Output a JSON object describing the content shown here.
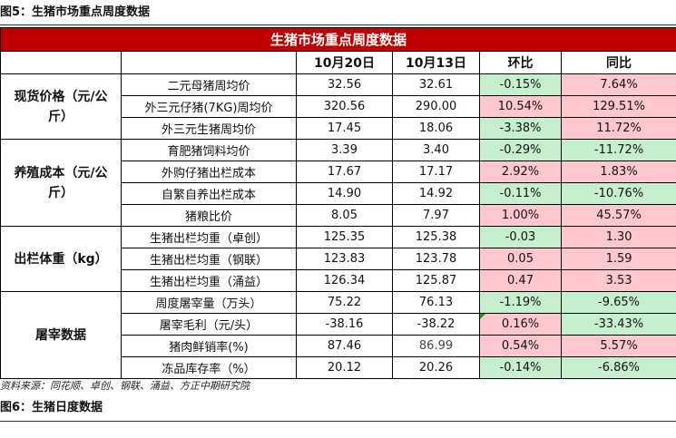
{
  "figure5": {
    "caption": "图5：生猪市场重点周度数据"
  },
  "table": {
    "title": "生猪市场重点周度数据",
    "headers": [
      "10月20日",
      "10月13日",
      "环比",
      "同比"
    ],
    "groups": [
      {
        "category": "现货价格（元/公斤）",
        "rows": [
          {
            "label": "二元母猪周均价",
            "cur": "32.56",
            "prev": "32.61",
            "wow": "-0.15%",
            "yoy": "7.64%"
          },
          {
            "label": "外三元仔猪(7KG)周均价",
            "cur": "320.56",
            "prev": "290.00",
            "wow": "10.54%",
            "yoy": "129.51%"
          },
          {
            "label": "外三元生猪周均价",
            "cur": "17.45",
            "prev": "18.06",
            "wow": "-3.38%",
            "yoy": "11.72%"
          }
        ]
      },
      {
        "category": "养殖成本（元/公斤）",
        "rows": [
          {
            "label": "育肥猪饲料均价",
            "cur": "3.39",
            "prev": "3.40",
            "wow": "-0.29%",
            "yoy": "-11.72%"
          },
          {
            "label": "外购仔猪出栏成本",
            "cur": "17.67",
            "prev": "17.17",
            "wow": "2.92%",
            "yoy": "1.83%"
          },
          {
            "label": "自繁自养出栏成本",
            "cur": "14.90",
            "prev": "14.92",
            "wow": "-0.11%",
            "yoy": "-10.76%"
          },
          {
            "label": "猪粮比价",
            "cur": "8.05",
            "prev": "7.97",
            "wow": "1.00%",
            "yoy": "45.57%"
          }
        ]
      },
      {
        "category": "出栏体重（kg）",
        "rows": [
          {
            "label": "生猪出栏均重（卓创）",
            "cur": "125.35",
            "prev": "125.38",
            "wow": "-0.03",
            "yoy": "1.30"
          },
          {
            "label": "生猪出栏均重（钢联）",
            "cur": "123.83",
            "prev": "123.78",
            "wow": "0.05",
            "yoy": "1.59"
          },
          {
            "label": "生猪出栏均重（涌益）",
            "cur": "126.34",
            "prev": "125.87",
            "wow": "0.47",
            "yoy": "3.53"
          }
        ]
      },
      {
        "category": "屠宰数据",
        "rows": [
          {
            "label": "周度屠宰量（万头）",
            "cur": "75.22",
            "prev": "76.13",
            "wow": "-1.19%",
            "yoy": "-9.65%"
          },
          {
            "label": "屠宰毛利（元/头）",
            "cur": "-38.16",
            "prev": "-38.22",
            "wow": "0.16%",
            "yoy": "-33.43%"
          },
          {
            "label": "猪肉鲜销率(%)",
            "cur": "87.46",
            "prev": "86.99",
            "wow": "0.54%",
            "yoy": "5.57%"
          },
          {
            "label": "冻品库存率（%）",
            "cur": "20.12",
            "prev": "20.26",
            "wow": "-0.14%",
            "yoy": "-6.86%"
          }
        ]
      }
    ]
  },
  "colors": {
    "title_bg": "#c00000",
    "up_bg": "#ffc7ce",
    "down_bg": "#c6efce"
  },
  "source": "资料来源：同花顺、卓创、钢联、涌益、方正中期研究院",
  "figure6": {
    "caption": "图6：生猪日度数据"
  }
}
